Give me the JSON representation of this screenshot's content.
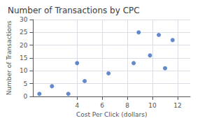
{
  "chart_data": {
    "type": "scatter",
    "title": "Number of Transactions by CPC",
    "xlabel": "Cost Per Click (dollars)",
    "ylabel": "Number of Transactions",
    "x": [
      1.0,
      2.0,
      3.3,
      4.0,
      4.6,
      6.5,
      8.5,
      8.9,
      9.8,
      10.5,
      11.0,
      11.6
    ],
    "y": [
      1,
      4,
      1,
      13,
      6,
      9,
      13,
      25,
      16,
      24,
      11,
      22
    ],
    "xlim": [
      0.5,
      13
    ],
    "ylim": [
      0,
      30
    ],
    "xticks": [
      4,
      6,
      8,
      10,
      12
    ],
    "yticks": [
      0,
      5,
      10,
      15,
      20,
      25,
      30
    ],
    "color": "#3d6bbf",
    "grid": true
  }
}
